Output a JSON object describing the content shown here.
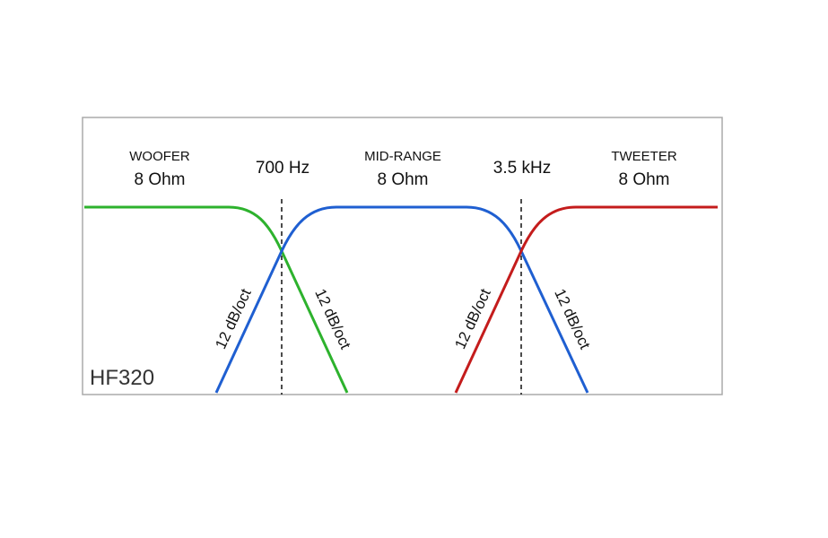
{
  "drivers": [
    {
      "name": "WOOFER",
      "impedance": "8 Ohm"
    },
    {
      "name": "MID-RANGE",
      "impedance": "8 Ohm"
    },
    {
      "name": "TWEETER",
      "impedance": "8 Ohm"
    }
  ],
  "crossovers": [
    "700 Hz",
    "3.5 kHz"
  ],
  "slopes": [
    "12 dB/oct",
    "12 dB/oct",
    "12 dB/oct",
    "12 dB/oct"
  ],
  "model": "HF320"
}
